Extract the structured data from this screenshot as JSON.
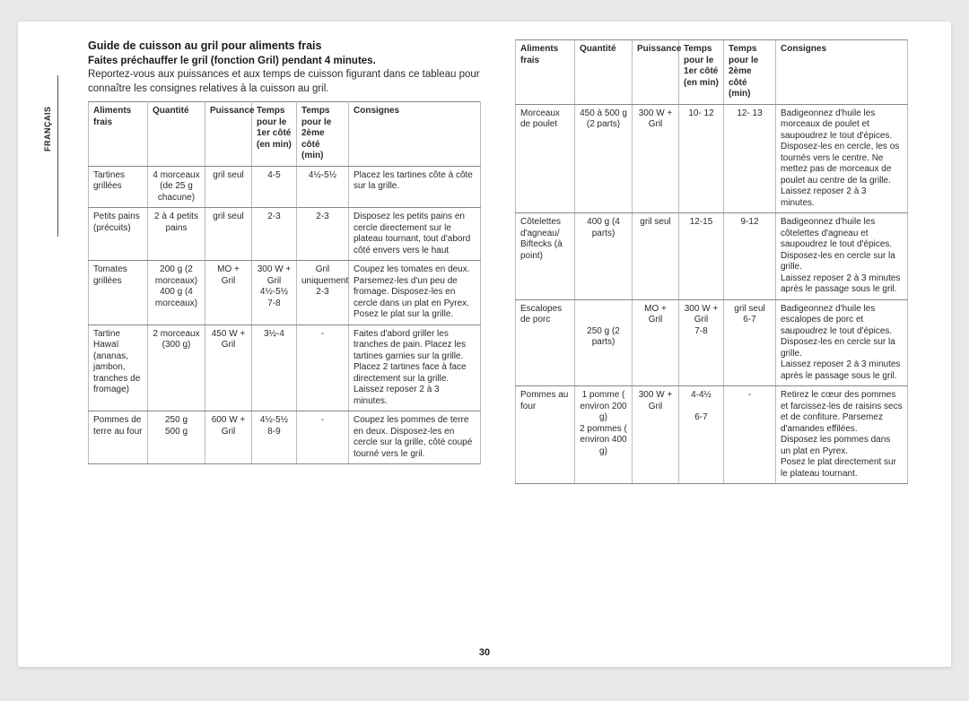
{
  "lang_tab": "FRANÇAIS",
  "page_number": "30",
  "guide_title": "Guide de cuisson au gril pour aliments frais",
  "preheat_line": "Faites préchauffer le gril (fonction Gril) pendant 4 minutes.",
  "intro_body": "Reportez-vous aux puissances et aux temps de cuisson figurant dans ce tableau pour connaître les consignes relatives à la cuisson au gril.",
  "headers": {
    "aliments": "Aliments frais",
    "quantite": "Quantité",
    "puissance": "Puissance",
    "temps1": "Temps pour le 1er côté (en min)",
    "temps2": "Temps pour le 2ème côté (min)",
    "consignes": "Consignes"
  },
  "left_rows": [
    {
      "aliments": "Tartines grillées",
      "quantite": "4 morceaux (de 25 g chacune)",
      "puissance": "gril seul",
      "t1": "4-5",
      "t2": "4½-5½",
      "consignes": "Placez les tartines côte à côte sur la grille."
    },
    {
      "aliments": "Petits pains (précuits)",
      "quantite": "2 à 4 petits pains",
      "puissance": "gril seul",
      "t1": "2-3",
      "t2": "2-3",
      "consignes": "Disposez les petits pains en cercle directement sur le plateau tournant, tout d'abord côté envers vers le haut"
    },
    {
      "aliments": "Tomates grillées",
      "quantite": "200 g (2 morceaux)\n400 g (4 morceaux)",
      "puissance": "MO + Gril",
      "t1": "300 W + Gril\n4½-5½\n7-8",
      "t2": "Gril uniquement\n2-3",
      "consignes": "Coupez les tomates en deux. Parsemez-les d'un peu de fromage. Disposez-les en cercle dans un plat en Pyrex. Posez le plat sur la grille."
    },
    {
      "aliments": "Tartine Hawaï (ananas, jambon, tranches de fromage)",
      "quantite": "2 morceaux (300 g)",
      "puissance": "450 W + Gril",
      "t1": "3½-4",
      "t2": "-",
      "consignes": "Faites d'abord griller les tranches de pain. Placez les tartines garnies sur la grille.\nPlacez 2 tartines face à face directement sur la grille. Laissez reposer 2 à 3 minutes."
    },
    {
      "aliments": "Pommes de terre au four",
      "quantite": "250 g\n500 g",
      "puissance": "600 W + Gril",
      "t1": "4½-5½\n8-9",
      "t2": "-",
      "consignes": "Coupez les pommes de terre en deux. Disposez-les en cercle sur la grille, côté coupé tourné vers le gril."
    }
  ],
  "right_rows": [
    {
      "aliments": "Morceaux de poulet",
      "quantite": "450 à 500 g (2 parts)",
      "puissance": "300 W + Gril",
      "t1": "10- 12",
      "t2": "12- 13",
      "consignes": "Badigeonnez d'huile les morceaux de poulet et saupoudrez le tout d'épices.\nDisposez-les en cercle, les os tournés vers le centre. Ne mettez pas de morceaux de poulet au centre de la grille. Laissez reposer 2 à 3 minutes."
    },
    {
      "aliments": "Côtelettes d'agneau/ Biftecks (à point)",
      "quantite": "400 g (4 parts)",
      "puissance": "gril seul",
      "t1": "12-15",
      "t2": "9-12",
      "consignes": "Badigeonnez d'huile les côtelettes d'agneau et saupoudrez le tout d'épices.\nDisposez-les en cercle sur la grille.\nLaissez reposer 2 à 3 minutes après le passage sous le gril."
    },
    {
      "aliments": "Escalopes de porc",
      "quantite": "\n\n250 g (2 parts)",
      "puissance": "MO + Gril",
      "t1": "300 W + Gril\n7-8",
      "t2": "gril seul\n6-7",
      "consignes": "Badigeonnez d'huile les escalopes de porc et saupoudrez le tout d'épices.\nDisposez-les en cercle sur la grille.\nLaissez reposer 2 à 3 minutes après le passage sous le gril."
    },
    {
      "aliments": "Pommes au four",
      "quantite": "1 pomme ( environ 200 g)\n2 pommes ( environ 400 g)",
      "puissance": "300 W + Gril",
      "t1": "4-4½\n\n6-7",
      "t2": "-",
      "consignes": "Retirez le cœur des pommes et farcissez-les de raisins secs et de confiture. Parsemez d'amandes effilées.\nDisposez les pommes dans un plat en Pyrex.\nPosez le plat directement sur le plateau tournant."
    }
  ]
}
